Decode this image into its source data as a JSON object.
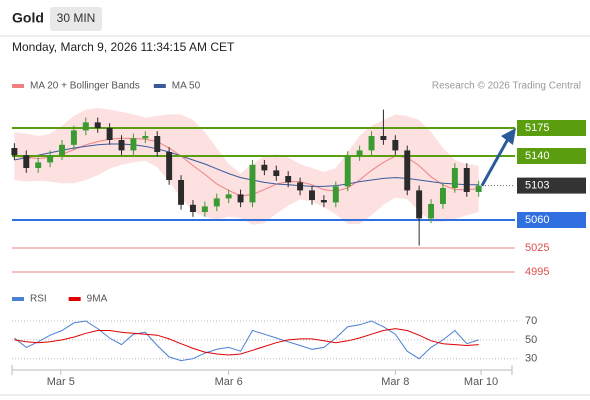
{
  "header": {
    "symbol": "Gold",
    "timeframe": "30 MIN",
    "timestamp": "Monday, March 9, 2026 11:34:15 AM CET",
    "source": "Research © 2026 Trading Central"
  },
  "chart_data": [
    {
      "type": "candlestick",
      "ylim": [
        4972.5,
        5210
      ],
      "xlim": [
        -0.2,
        41.8
      ],
      "xticks": [
        {
          "value": 3.9,
          "label": "Mar 5"
        },
        {
          "value": 18,
          "label": "Mar 6"
        },
        {
          "value": 32,
          "label": "Mar 8"
        },
        {
          "value": 39.2,
          "label": "Mar 10"
        }
      ],
      "up_color": "#3c9a32",
      "down_color": "#2b2b2b",
      "open": [
        5150,
        5141,
        5125,
        5132,
        5141,
        5154,
        5172,
        5182,
        5175,
        5160,
        5147,
        5162,
        5165,
        5145,
        5110,
        5079,
        5070,
        5077,
        5087,
        5092,
        5082,
        5129,
        5122,
        5115,
        5107,
        5097,
        5085,
        5082,
        5102,
        5140,
        5147,
        5165,
        5160,
        5147,
        5097,
        5062,
        5080,
        5100,
        5125,
        5095
      ],
      "high": [
        5156,
        5147,
        5138,
        5147,
        5160,
        5178,
        5188,
        5188,
        5181,
        5166,
        5168,
        5171,
        5171,
        5151,
        5116,
        5085,
        5083,
        5093,
        5098,
        5098,
        5135,
        5135,
        5128,
        5121,
        5113,
        5103,
        5091,
        5108,
        5146,
        5153,
        5171,
        5198,
        5166,
        5153,
        5103,
        5086,
        5106,
        5131,
        5131,
        5109
      ],
      "low": [
        5135,
        5119,
        5119,
        5126,
        5135,
        5148,
        5166,
        5169,
        5154,
        5141,
        5141,
        5156,
        5139,
        5104,
        5073,
        5064,
        5064,
        5071,
        5081,
        5076,
        5076,
        5116,
        5109,
        5101,
        5091,
        5079,
        5076,
        5076,
        5096,
        5134,
        5141,
        5154,
        5141,
        5091,
        5028,
        5056,
        5074,
        5094,
        5089,
        5089
      ],
      "close": [
        5141,
        5125,
        5132,
        5141,
        5154,
        5172,
        5182,
        5175,
        5160,
        5147,
        5162,
        5165,
        5145,
        5110,
        5079,
        5070,
        5077,
        5087,
        5092,
        5082,
        5129,
        5122,
        5115,
        5107,
        5097,
        5085,
        5082,
        5102,
        5140,
        5147,
        5165,
        5160,
        5147,
        5097,
        5062,
        5080,
        5100,
        5125,
        5095,
        5103
      ],
      "series": [
        {
          "name": "MA 20 + Bollinger Bands",
          "color": "#f08080",
          "band_color": "#fde0e0",
          "values": [
            5140,
            5138,
            5137,
            5138,
            5142,
            5148,
            5154,
            5158,
            5161,
            5162,
            5162,
            5161,
            5158,
            5150,
            5140,
            5128,
            5117,
            5105,
            5097,
            5090,
            5092,
            5098,
            5105,
            5108,
            5108,
            5104,
            5098,
            5096,
            5100,
            5110,
            5122,
            5132,
            5140,
            5138,
            5128,
            5114,
            5104,
            5098,
            5098,
            5099
          ],
          "upper": [
            5170,
            5168,
            5165,
            5168,
            5178,
            5190,
            5198,
            5200,
            5198,
            5195,
            5192,
            5188,
            5190,
            5192,
            5192,
            5185,
            5170,
            5150,
            5130,
            5118,
            5130,
            5140,
            5142,
            5138,
            5130,
            5125,
            5120,
            5125,
            5145,
            5165,
            5178,
            5185,
            5192,
            5190,
            5185,
            5170,
            5150,
            5135,
            5130,
            5128
          ],
          "lower": [
            5110,
            5108,
            5109,
            5108,
            5106,
            5106,
            5110,
            5116,
            5124,
            5129,
            5132,
            5134,
            5126,
            5108,
            5088,
            5071,
            5064,
            5060,
            5064,
            5062,
            5054,
            5056,
            5068,
            5078,
            5086,
            5083,
            5076,
            5067,
            5055,
            5055,
            5066,
            5079,
            5088,
            5086,
            5071,
            5058,
            5058,
            5061,
            5066,
            5070
          ]
        },
        {
          "name": "MA 50",
          "color": "#3a5a9c",
          "values": [
            5135,
            5138,
            5141,
            5144,
            5147,
            5150,
            5152,
            5154,
            5155,
            5155,
            5154,
            5152,
            5149,
            5145,
            5140,
            5135,
            5130,
            5124,
            5118,
            5113,
            5110,
            5107,
            5105,
            5104,
            5103,
            5102,
            5102,
            5103,
            5105,
            5108,
            5110,
            5112,
            5113,
            5112,
            5110,
            5108,
            5106,
            5105,
            5104,
            5104
          ]
        }
      ],
      "levels": [
        {
          "value": 5175,
          "color": "#5a9e0f",
          "boxed": true,
          "line": "solid"
        },
        {
          "value": 5140,
          "color": "#5a9e0f",
          "boxed": true,
          "line": "solid"
        },
        {
          "value": 5103,
          "color": "#333333",
          "boxed": true,
          "line": "dotted"
        },
        {
          "value": 5060,
          "color": "#2f6fe0",
          "boxed": true,
          "line": "solid"
        },
        {
          "value": 5025,
          "color": "#e05050",
          "boxed": false,
          "line": "solid"
        },
        {
          "value": 4995,
          "color": "#e05050",
          "boxed": false,
          "line": "solid"
        }
      ]
    },
    {
      "type": "line",
      "ylim": [
        17,
        87
      ],
      "yticks": [
        30,
        50,
        70
      ],
      "series": [
        {
          "name": "RSI",
          "color": "#4a7fd4",
          "values": [
            52,
            42,
            48,
            55,
            60,
            68,
            70,
            62,
            52,
            45,
            56,
            58,
            44,
            32,
            28,
            30,
            36,
            40,
            42,
            38,
            60,
            56,
            52,
            48,
            44,
            40,
            42,
            52,
            64,
            66,
            70,
            64,
            56,
            38,
            30,
            42,
            50,
            60,
            46,
            50
          ]
        },
        {
          "name": "9MA",
          "color": "#e00000",
          "values": [
            50,
            48,
            47,
            48,
            50,
            53,
            57,
            60,
            60,
            58,
            57,
            56,
            55,
            51,
            46,
            41,
            37,
            35,
            34,
            35,
            39,
            43,
            47,
            50,
            51,
            51,
            49,
            47,
            49,
            52,
            56,
            60,
            62,
            60,
            55,
            49,
            46,
            45,
            44,
            45
          ]
        }
      ]
    }
  ]
}
